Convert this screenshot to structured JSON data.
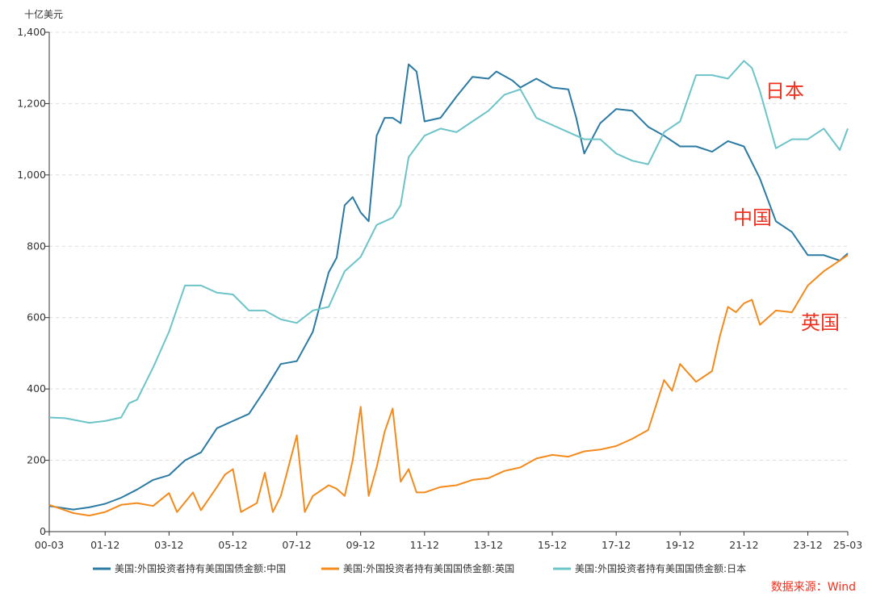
{
  "chart_data": {
    "type": "line",
    "unit_label": "十亿美元",
    "ylim": [
      0,
      1400
    ],
    "y_ticks": [
      0,
      200,
      400,
      600,
      800,
      1000,
      1200,
      1400
    ],
    "y_tick_labels": [
      "0",
      "200",
      "400",
      "600",
      "800",
      "1,000",
      "1,200",
      "1,400"
    ],
    "xlim": [
      "2000-03",
      "2025-03"
    ],
    "x_ticks": [
      "2000-03",
      "2001-12",
      "2003-12",
      "2005-12",
      "2007-12",
      "2009-12",
      "2011-12",
      "2013-12",
      "2015-12",
      "2017-12",
      "2019-12",
      "2021-12",
      "2023-12",
      "2025-03"
    ],
    "x_tick_labels": [
      "00-03",
      "01-12",
      "03-12",
      "05-12",
      "07-12",
      "09-12",
      "11-12",
      "13-12",
      "15-12",
      "17-12",
      "19-12",
      "21-12",
      "23-12",
      "25-03"
    ],
    "grid": "horizontal dashed",
    "legend_position": "bottom",
    "source": "数据来源：Wind",
    "annotations": [
      {
        "text": "日本",
        "series": "japan",
        "color": "#f0301e"
      },
      {
        "text": "中国",
        "series": "china",
        "color": "#f0301e"
      },
      {
        "text": "英国",
        "series": "uk",
        "color": "#f0301e"
      }
    ],
    "series": [
      {
        "key": "china",
        "name": "美国:外国投资者持有美国国债金额:中国",
        "color": "#2a7aa3",
        "points": [
          [
            "2000-03",
            72
          ],
          [
            "2000-12",
            62
          ],
          [
            "2001-06",
            68
          ],
          [
            "2001-12",
            78
          ],
          [
            "2002-06",
            95
          ],
          [
            "2002-12",
            118
          ],
          [
            "2003-06",
            145
          ],
          [
            "2003-12",
            158
          ],
          [
            "2004-06",
            200
          ],
          [
            "2004-12",
            222
          ],
          [
            "2005-06",
            290
          ],
          [
            "2005-12",
            310
          ],
          [
            "2006-06",
            330
          ],
          [
            "2006-12",
            397
          ],
          [
            "2007-06",
            470
          ],
          [
            "2007-12",
            478
          ],
          [
            "2008-06",
            560
          ],
          [
            "2008-12",
            727
          ],
          [
            "2009-03",
            768
          ],
          [
            "2009-06",
            915
          ],
          [
            "2009-09",
            938
          ],
          [
            "2009-12",
            895
          ],
          [
            "2010-03",
            870
          ],
          [
            "2010-06",
            1110
          ],
          [
            "2010-09",
            1160
          ],
          [
            "2010-12",
            1160
          ],
          [
            "2011-03",
            1145
          ],
          [
            "2011-06",
            1310
          ],
          [
            "2011-09",
            1290
          ],
          [
            "2011-12",
            1150
          ],
          [
            "2012-06",
            1160
          ],
          [
            "2012-12",
            1220
          ],
          [
            "2013-06",
            1275
          ],
          [
            "2013-12",
            1270
          ],
          [
            "2014-03",
            1290
          ],
          [
            "2014-09",
            1265
          ],
          [
            "2014-12",
            1245
          ],
          [
            "2015-06",
            1270
          ],
          [
            "2015-12",
            1245
          ],
          [
            "2016-06",
            1240
          ],
          [
            "2016-09",
            1160
          ],
          [
            "2016-12",
            1060
          ],
          [
            "2017-06",
            1145
          ],
          [
            "2017-12",
            1185
          ],
          [
            "2018-06",
            1180
          ],
          [
            "2018-12",
            1135
          ],
          [
            "2019-06",
            1110
          ],
          [
            "2019-12",
            1080
          ],
          [
            "2020-06",
            1080
          ],
          [
            "2020-12",
            1065
          ],
          [
            "2021-06",
            1095
          ],
          [
            "2021-12",
            1080
          ],
          [
            "2022-06",
            990
          ],
          [
            "2022-12",
            870
          ],
          [
            "2023-06",
            840
          ],
          [
            "2023-12",
            775
          ],
          [
            "2024-06",
            775
          ],
          [
            "2024-12",
            760
          ],
          [
            "2025-03",
            780
          ]
        ]
      },
      {
        "key": "uk",
        "name": "美国:外国投资者持有美国国债金额:英国",
        "color": "#f38a1c",
        "points": [
          [
            "2000-03",
            75
          ],
          [
            "2000-12",
            52
          ],
          [
            "2001-06",
            45
          ],
          [
            "2001-12",
            55
          ],
          [
            "2002-06",
            75
          ],
          [
            "2002-12",
            80
          ],
          [
            "2003-06",
            72
          ],
          [
            "2003-12",
            108
          ],
          [
            "2004-03",
            55
          ],
          [
            "2004-09",
            110
          ],
          [
            "2004-12",
            60
          ],
          [
            "2005-06",
            125
          ],
          [
            "2005-09",
            160
          ],
          [
            "2005-12",
            175
          ],
          [
            "2006-03",
            55
          ],
          [
            "2006-09",
            80
          ],
          [
            "2006-12",
            165
          ],
          [
            "2007-03",
            55
          ],
          [
            "2007-06",
            100
          ],
          [
            "2007-12",
            270
          ],
          [
            "2008-03",
            55
          ],
          [
            "2008-06",
            100
          ],
          [
            "2008-12",
            130
          ],
          [
            "2009-03",
            120
          ],
          [
            "2009-06",
            100
          ],
          [
            "2009-09",
            200
          ],
          [
            "2009-12",
            350
          ],
          [
            "2010-03",
            100
          ],
          [
            "2010-06",
            180
          ],
          [
            "2010-09",
            280
          ],
          [
            "2010-12",
            345
          ],
          [
            "2011-03",
            140
          ],
          [
            "2011-06",
            175
          ],
          [
            "2011-09",
            110
          ],
          [
            "2011-12",
            110
          ],
          [
            "2012-06",
            125
          ],
          [
            "2012-12",
            130
          ],
          [
            "2013-06",
            145
          ],
          [
            "2013-12",
            150
          ],
          [
            "2014-06",
            170
          ],
          [
            "2014-12",
            180
          ],
          [
            "2015-06",
            205
          ],
          [
            "2015-12",
            215
          ],
          [
            "2016-06",
            210
          ],
          [
            "2016-12",
            225
          ],
          [
            "2017-06",
            230
          ],
          [
            "2017-12",
            240
          ],
          [
            "2018-06",
            260
          ],
          [
            "2018-12",
            285
          ],
          [
            "2019-06",
            425
          ],
          [
            "2019-09",
            395
          ],
          [
            "2019-12",
            470
          ],
          [
            "2020-06",
            420
          ],
          [
            "2020-12",
            450
          ],
          [
            "2021-03",
            550
          ],
          [
            "2021-06",
            630
          ],
          [
            "2021-09",
            615
          ],
          [
            "2021-12",
            640
          ],
          [
            "2022-03",
            650
          ],
          [
            "2022-06",
            580
          ],
          [
            "2022-12",
            620
          ],
          [
            "2023-06",
            615
          ],
          [
            "2023-12",
            690
          ],
          [
            "2024-06",
            730
          ],
          [
            "2024-12",
            760
          ],
          [
            "2025-03",
            775
          ]
        ]
      },
      {
        "key": "japan",
        "name": "美国:外国投资者持有美国国债金额:日本",
        "color": "#6cc4c8",
        "points": [
          [
            "2000-03",
            320
          ],
          [
            "2000-09",
            318
          ],
          [
            "2001-06",
            305
          ],
          [
            "2001-12",
            310
          ],
          [
            "2002-06",
            320
          ],
          [
            "2002-09",
            360
          ],
          [
            "2002-12",
            370
          ],
          [
            "2003-06",
            460
          ],
          [
            "2003-12",
            560
          ],
          [
            "2004-06",
            690
          ],
          [
            "2004-12",
            690
          ],
          [
            "2005-06",
            670
          ],
          [
            "2005-12",
            665
          ],
          [
            "2006-06",
            620
          ],
          [
            "2006-12",
            620
          ],
          [
            "2007-06",
            595
          ],
          [
            "2007-12",
            585
          ],
          [
            "2008-06",
            620
          ],
          [
            "2008-12",
            630
          ],
          [
            "2009-06",
            730
          ],
          [
            "2009-12",
            770
          ],
          [
            "2010-06",
            860
          ],
          [
            "2010-12",
            880
          ],
          [
            "2011-03",
            915
          ],
          [
            "2011-06",
            1050
          ],
          [
            "2011-12",
            1110
          ],
          [
            "2012-06",
            1130
          ],
          [
            "2012-12",
            1120
          ],
          [
            "2013-06",
            1150
          ],
          [
            "2013-12",
            1180
          ],
          [
            "2014-06",
            1225
          ],
          [
            "2014-12",
            1240
          ],
          [
            "2015-06",
            1160
          ],
          [
            "2015-12",
            1140
          ],
          [
            "2016-06",
            1120
          ],
          [
            "2016-12",
            1100
          ],
          [
            "2017-06",
            1100
          ],
          [
            "2017-12",
            1060
          ],
          [
            "2018-06",
            1040
          ],
          [
            "2018-12",
            1030
          ],
          [
            "2019-06",
            1120
          ],
          [
            "2019-12",
            1150
          ],
          [
            "2020-06",
            1280
          ],
          [
            "2020-12",
            1280
          ],
          [
            "2021-06",
            1270
          ],
          [
            "2021-12",
            1320
          ],
          [
            "2022-03",
            1300
          ],
          [
            "2022-06",
            1235
          ],
          [
            "2022-12",
            1075
          ],
          [
            "2023-06",
            1100
          ],
          [
            "2023-12",
            1100
          ],
          [
            "2024-06",
            1130
          ],
          [
            "2024-12",
            1070
          ],
          [
            "2025-03",
            1130
          ]
        ]
      }
    ]
  }
}
